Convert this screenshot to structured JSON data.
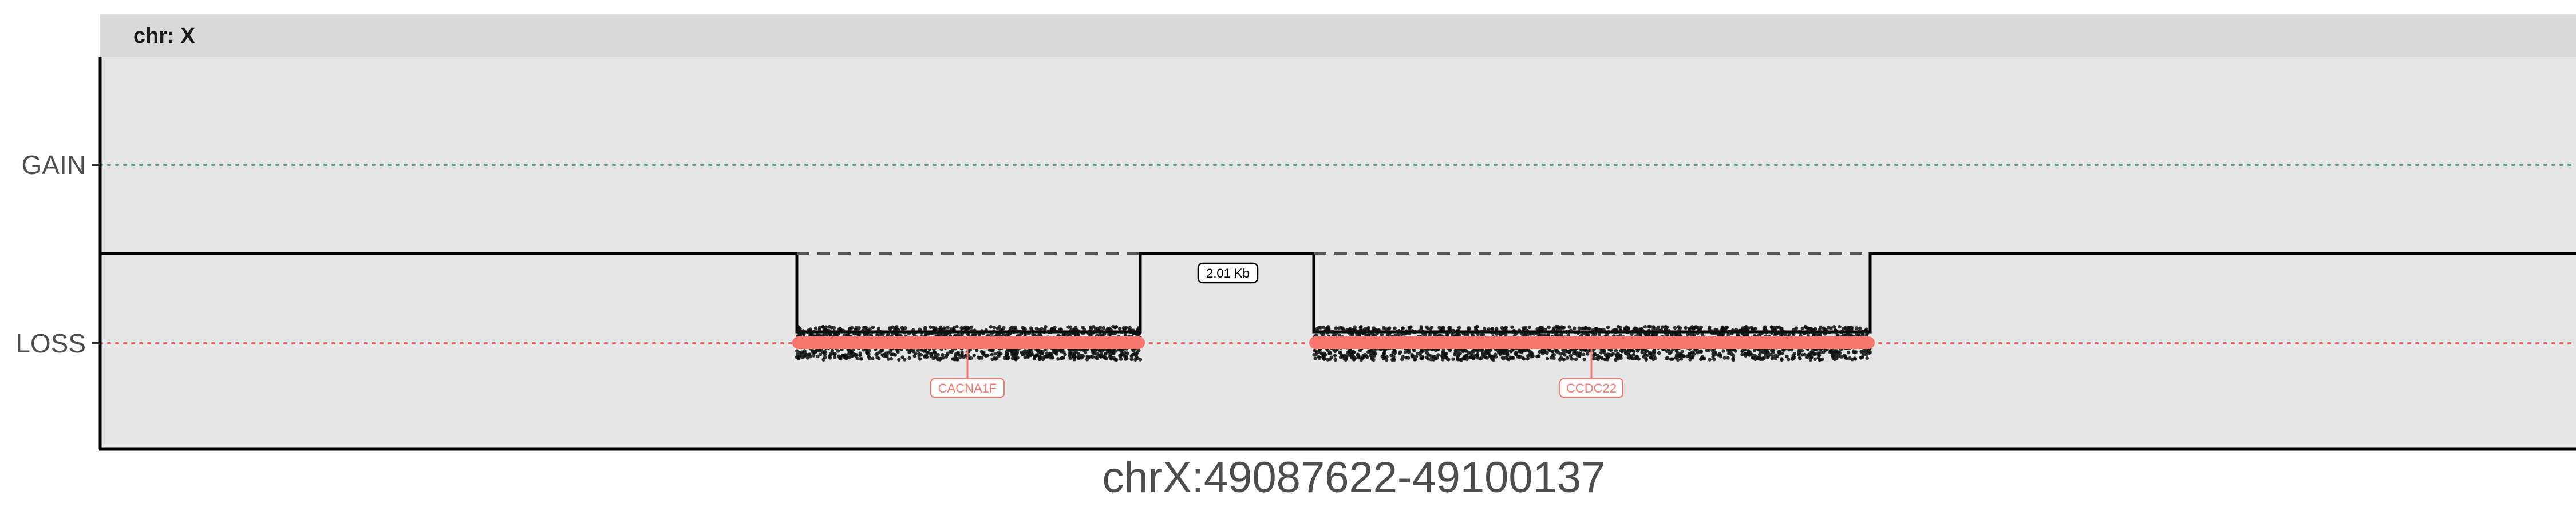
{
  "chart_data": {
    "type": "scatter",
    "facet_label": "chr: X",
    "xlabel": "chrX:49087622-49100137",
    "y_ticks": [
      "GAIN",
      "LOSS"
    ],
    "reference_lines": [
      {
        "level": "GAIN",
        "color": "#5b9e8f",
        "style": "dotted"
      },
      {
        "level": "LOSS",
        "color": "#e06666",
        "style": "dotted"
      }
    ],
    "segments": [
      {
        "name": "CACNA1F",
        "call": "LOSS",
        "color": "#f8766d",
        "label_color": "#f8766d"
      },
      {
        "name": "CCDC22",
        "call": "LOSS",
        "color": "#f8766d",
        "label_color": "#f8766d"
      }
    ],
    "gap_label": "2.01 Kb",
    "panel_background": "#e6e6e6",
    "strip_background": "#d9d9d9",
    "grid": false
  }
}
